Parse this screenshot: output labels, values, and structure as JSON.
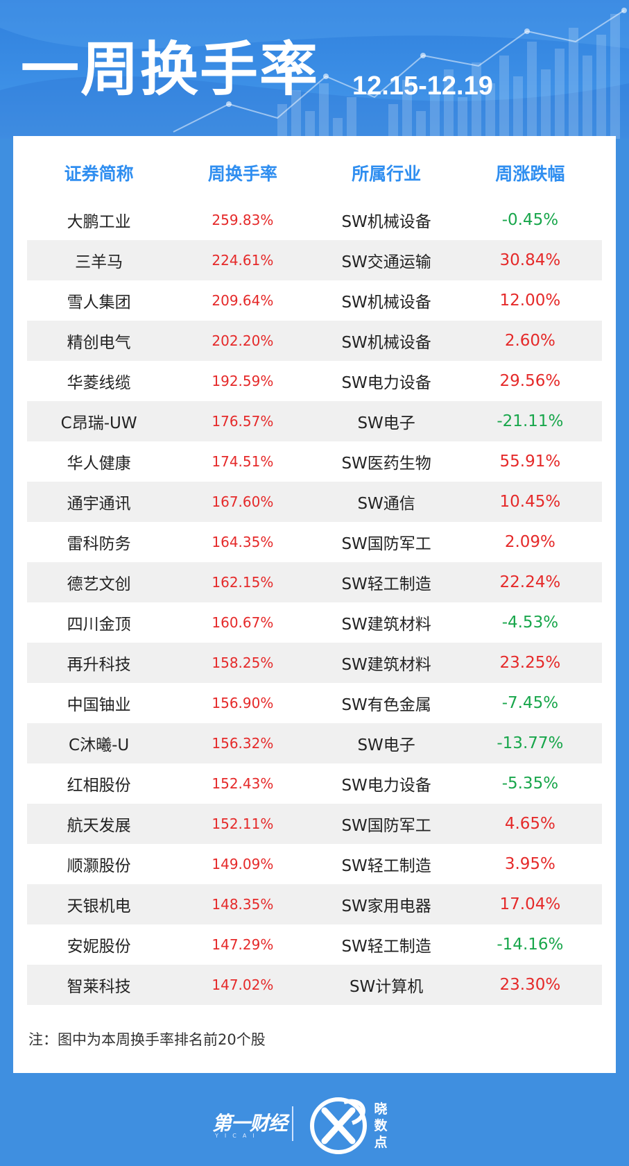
{
  "header": {
    "title": "一周换手率",
    "date_range": "12.15-12.19"
  },
  "table": {
    "columns": [
      "证券简称",
      "周换手率",
      "所属行业",
      "周涨跌幅"
    ],
    "rows": [
      {
        "name": "大鹏工业",
        "rate": "259.83%",
        "industry": "SW机械设备",
        "change": "-0.45%",
        "direction": "down"
      },
      {
        "name": "三羊马",
        "rate": "224.61%",
        "industry": "SW交通运输",
        "change": "30.84%",
        "direction": "up"
      },
      {
        "name": "雪人集团",
        "rate": "209.64%",
        "industry": "SW机械设备",
        "change": "12.00%",
        "direction": "up"
      },
      {
        "name": "精创电气",
        "rate": "202.20%",
        "industry": "SW机械设备",
        "change": "2.60%",
        "direction": "up"
      },
      {
        "name": "华菱线缆",
        "rate": "192.59%",
        "industry": "SW电力设备",
        "change": "29.56%",
        "direction": "up"
      },
      {
        "name": "C昂瑞-UW",
        "rate": "176.57%",
        "industry": "SW电子",
        "change": "-21.11%",
        "direction": "down"
      },
      {
        "name": "华人健康",
        "rate": "174.51%",
        "industry": "SW医药生物",
        "change": "55.91%",
        "direction": "up"
      },
      {
        "name": "通宇通讯",
        "rate": "167.60%",
        "industry": "SW通信",
        "change": "10.45%",
        "direction": "up"
      },
      {
        "name": "雷科防务",
        "rate": "164.35%",
        "industry": "SW国防军工",
        "change": "2.09%",
        "direction": "up"
      },
      {
        "name": "德艺文创",
        "rate": "162.15%",
        "industry": "SW轻工制造",
        "change": "22.24%",
        "direction": "up"
      },
      {
        "name": "四川金顶",
        "rate": "160.67%",
        "industry": "SW建筑材料",
        "change": "-4.53%",
        "direction": "down"
      },
      {
        "name": "再升科技",
        "rate": "158.25%",
        "industry": "SW建筑材料",
        "change": "23.25%",
        "direction": "up"
      },
      {
        "name": "中国铀业",
        "rate": "156.90%",
        "industry": "SW有色金属",
        "change": "-7.45%",
        "direction": "down"
      },
      {
        "name": "C沐曦-U",
        "rate": "156.32%",
        "industry": "SW电子",
        "change": "-13.77%",
        "direction": "down"
      },
      {
        "name": "红相股份",
        "rate": "152.43%",
        "industry": "SW电力设备",
        "change": "-5.35%",
        "direction": "down"
      },
      {
        "name": "航天发展",
        "rate": "152.11%",
        "industry": "SW国防军工",
        "change": "4.65%",
        "direction": "up"
      },
      {
        "name": "顺灏股份",
        "rate": "149.09%",
        "industry": "SW轻工制造",
        "change": "3.95%",
        "direction": "up"
      },
      {
        "name": "天银机电",
        "rate": "148.35%",
        "industry": "SW家用电器",
        "change": "17.04%",
        "direction": "up"
      },
      {
        "name": "安妮股份",
        "rate": "147.29%",
        "industry": "SW轻工制造",
        "change": "-14.16%",
        "direction": "down"
      },
      {
        "name": "智莱科技",
        "rate": "147.02%",
        "industry": "SW计算机",
        "change": "23.30%",
        "direction": "up"
      }
    ]
  },
  "note": "注：图中为本周换手率排名前20个股",
  "footer": {
    "brand_left": "第一财经",
    "brand_left_sub": "YICAI",
    "brand_right": "晓数点"
  },
  "colors": {
    "header_blue": "#3c8fe6",
    "column_header": "#2f8ef0",
    "rise_red": "#e52929",
    "fall_green": "#18a64b",
    "stripe": "#f0f0f0"
  }
}
